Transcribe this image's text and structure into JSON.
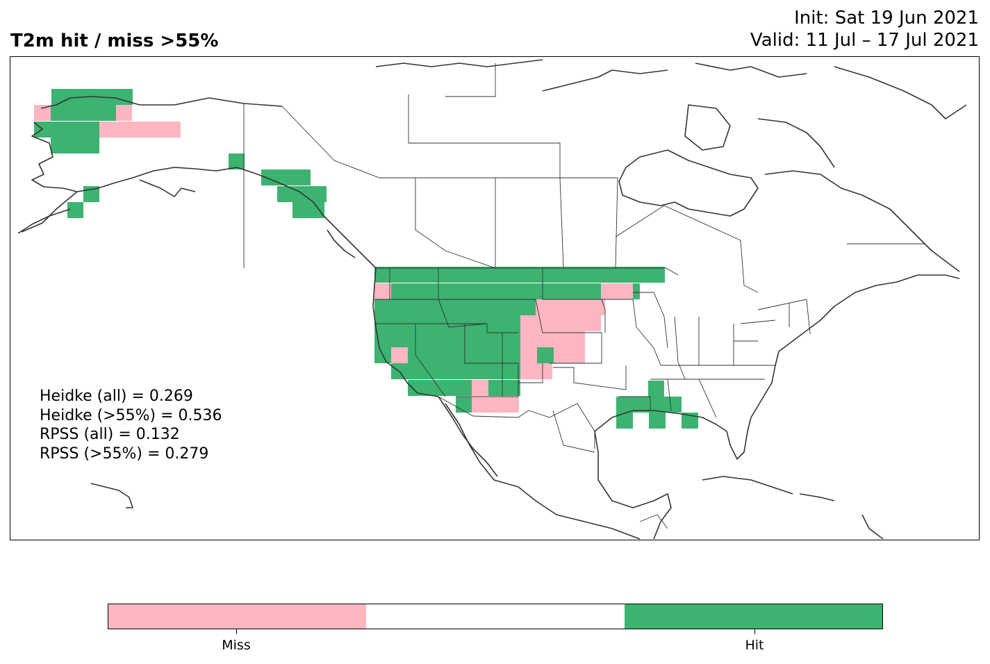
{
  "header": {
    "title": "T2m hit / miss  >55%",
    "init_line": "Init: Sat 19 Jun 2021",
    "valid_line": "Valid: 11 Jul – 17 Jul 2021"
  },
  "stats": [
    "Heidke (all) = 0.269",
    "Heidke (>55%) = 0.536",
    "RPSS (all) = 0.132",
    "RPSS (>55%) = 0.279"
  ],
  "colors": {
    "hit": "#3cb371",
    "miss": "#ffb6c1",
    "neutral": "#ffffff",
    "coast": "#333333",
    "border": "#333333"
  },
  "legend": {
    "segments": [
      {
        "key": "miss",
        "color": "#ffb6c1"
      },
      {
        "key": "neutral",
        "color": "#ffffff"
      },
      {
        "key": "hit",
        "color": "#3cb371"
      }
    ],
    "ticks": [
      {
        "label": "Miss",
        "position": 0.1667
      },
      {
        "label": "Hit",
        "position": 0.8333
      }
    ]
  }
}
